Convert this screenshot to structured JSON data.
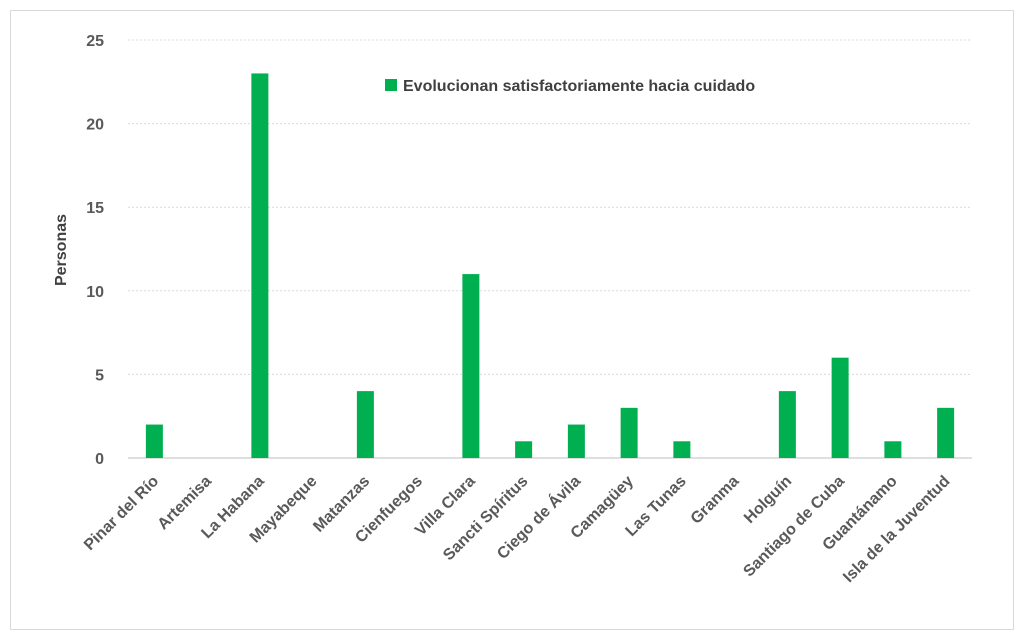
{
  "chart_data": {
    "type": "bar",
    "categories": [
      "Pinar del Río",
      "Artemisa",
      "La Habana",
      "Mayabeque",
      "Matanzas",
      "Cienfuegos",
      "Villa Clara",
      "Sancti Spíritus",
      "Ciego de Ávila",
      "Camagüey",
      "Las Tunas",
      "Granma",
      "Holguín",
      "Santiago de Cuba",
      "Guantánamo",
      "Isla de la Juventud"
    ],
    "series": [
      {
        "name": "Evolucionan satisfactoriamente hacia cuidado",
        "values": [
          2,
          0,
          23,
          0,
          4,
          0,
          11,
          1,
          2,
          3,
          1,
          0,
          4,
          6,
          1,
          3
        ],
        "color": "#00b050"
      }
    ],
    "ylabel": "Personas",
    "ylim": [
      0,
      25
    ],
    "yticks": [
      "0",
      "5",
      "10",
      "15",
      "20",
      "25"
    ],
    "grid": true,
    "legend_position": "top-right"
  }
}
